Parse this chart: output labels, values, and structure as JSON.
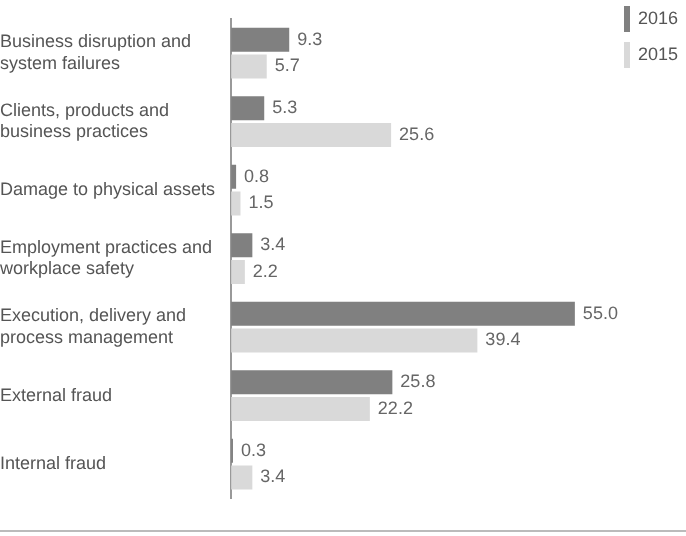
{
  "chart_data": {
    "type": "bar",
    "orientation": "horizontal",
    "categories": [
      "Business disruption and system failures",
      "Clients, products and business practices",
      "Damage to physical assets",
      "Employment practices and workplace safety",
      "Execution, delivery and process management",
      "External fraud",
      "Internal fraud"
    ],
    "series": [
      {
        "name": "2016",
        "color": "#808080",
        "values": [
          9.3,
          5.3,
          0.8,
          3.4,
          55.0,
          25.8,
          0.3
        ],
        "value_labels": [
          "9.3",
          "5.3",
          "0.8",
          "3.4",
          "55.0",
          "25.8",
          "0.3"
        ]
      },
      {
        "name": "2015",
        "color": "#d9d9d9",
        "values": [
          5.7,
          25.6,
          1.5,
          2.2,
          39.4,
          22.2,
          3.4
        ],
        "value_labels": [
          "5.7",
          "25.6",
          "1.5",
          "2.2",
          "39.4",
          "22.2",
          "3.4"
        ]
      }
    ],
    "legend": "top right"
  }
}
